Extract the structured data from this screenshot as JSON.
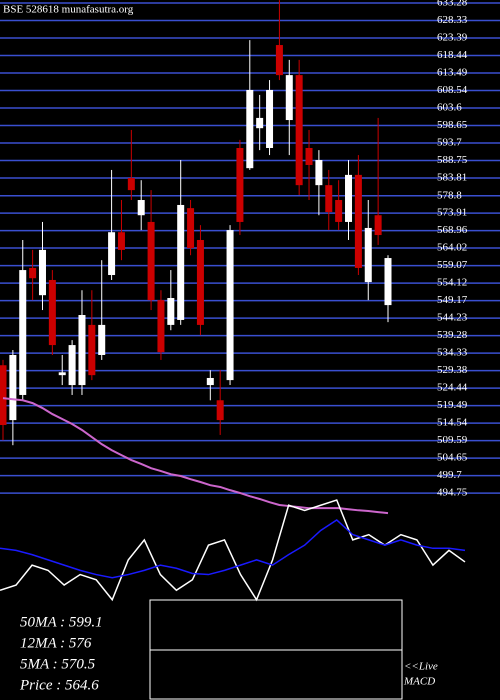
{
  "chart_data": [
    {
      "type": "candlestick",
      "title": "BSE 528618  munafasutra.org",
      "open": [
        530.9,
        515.4,
        522.5,
        558.4,
        550.7,
        555.0,
        528.1,
        525.3,
        525.3,
        542.3,
        533.8,
        556.4,
        568.5,
        583.8,
        573.3,
        571.4,
        549.3,
        542.3,
        543.7,
        575.3,
        566.3,
        525.3,
        521.0,
        526.7,
        592.3,
        586.6,
        597.9,
        592.3,
        621.4,
        600.2,
        612.9,
        592.3,
        581.8,
        581.8,
        577.6,
        571.4,
        584.7,
        554.4,
        573.3,
        547.9
      ],
      "high": [
        532.4,
        535.2,
        566.3,
        563.5,
        571.4,
        557.8,
        533.8,
        538.0,
        552.1,
        552.1,
        560.6,
        586.1,
        577.6,
        597.4,
        583.2,
        580.4,
        552.1,
        557.8,
        588.9,
        577.6,
        570.5,
        529.5,
        529.5,
        570.5,
        594.6,
        622.8,
        607.3,
        611.5,
        634.1,
        617.2,
        617.2,
        597.4,
        591.7,
        586.1,
        583.2,
        588.9,
        590.3,
        577.6,
        600.8,
        562.0
      ],
      "low": [
        509.7,
        508.3,
        521.0,
        549.3,
        546.5,
        533.8,
        525.3,
        522.5,
        522.5,
        526.7,
        532.4,
        555.0,
        560.6,
        577.6,
        569.1,
        546.5,
        532.4,
        540.8,
        542.3,
        562.0,
        539.4,
        521.0,
        511.2,
        525.3,
        567.7,
        586.1,
        591.7,
        590.3,
        611.5,
        590.3,
        579.0,
        577.6,
        573.3,
        569.1,
        569.1,
        566.3,
        556.4,
        549.3,
        564.9,
        543.1
      ],
      "close": [
        514.0,
        533.8,
        557.8,
        555.5,
        563.5,
        536.6,
        528.9,
        536.6,
        545.1,
        528.1,
        542.3,
        568.5,
        563.5,
        580.4,
        577.6,
        549.3,
        534.6,
        549.9,
        576.2,
        564.0,
        542.3,
        527.3,
        515.4,
        569.1,
        571.4,
        608.7,
        600.8,
        608.7,
        612.9,
        612.9,
        581.8,
        587.5,
        588.9,
        574.2,
        571.4,
        584.7,
        558.4,
        569.7,
        567.7,
        561.2
      ],
      "up_color": "#ffffff",
      "down_color": "#cc0000",
      "series": [
        {
          "color": "#cc66cc",
          "values": [
            521.6,
            521.3,
            521.0,
            520.2,
            518.8,
            517.1,
            515.7,
            514.3,
            512.6,
            510.6,
            508.6,
            506.9,
            505.5,
            504.1,
            503.0,
            501.8,
            501.0,
            500.1,
            499.6,
            498.7,
            497.9,
            497.0,
            496.5,
            495.6,
            494.8,
            493.9,
            493.1,
            492.2,
            491.4,
            491.1,
            490.8,
            490.5,
            490.5,
            490.5,
            490.5,
            490.2,
            489.9,
            489.7,
            489.4,
            489.1
          ]
        }
      ],
      "ylim": [
        491.4,
        634.13
      ],
      "yticks": [
        633.28,
        628.33,
        623.39,
        618.44,
        613.49,
        608.54,
        603.6,
        598.65,
        593.7,
        588.75,
        583.81,
        578.8,
        573.91,
        568.96,
        564.02,
        559.07,
        554.12,
        549.17,
        544.23,
        539.28,
        534.33,
        529.38,
        524.44,
        519.49,
        514.54,
        509.59,
        504.65,
        499.7,
        494.75
      ],
      "grid": true,
      "grid_color": "#3a4fd0"
    },
    {
      "type": "line",
      "ylim": [
        0,
        100
      ],
      "series": [
        {
          "color": "#ffffff",
          "values": [
            14,
            19,
            38,
            33,
            19,
            29,
            24,
            5,
            43,
            62,
            29,
            14,
            24,
            57,
            62,
            29,
            5,
            43,
            95,
            90,
            95,
            100,
            62,
            67,
            57,
            67,
            62,
            38,
            52,
            41
          ]
        },
        {
          "color": "#1a1aff",
          "values": [
            54,
            52,
            48,
            43,
            38,
            33,
            29,
            26,
            29,
            33,
            38,
            35,
            30,
            29,
            33,
            38,
            43,
            38,
            48,
            57,
            71,
            81,
            67,
            62,
            57,
            62,
            57,
            54,
            54,
            52
          ]
        }
      ]
    }
  ],
  "info": [
    "50MA : 599.1",
    "12MA : 576",
    "5MA : 570.5",
    "Price   : 564.6"
  ],
  "macd_label": [
    "<<Live",
    "MACD"
  ]
}
